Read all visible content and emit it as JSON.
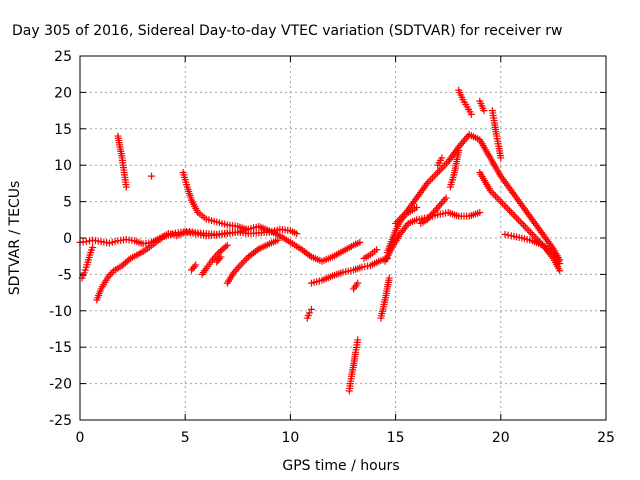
{
  "chart_data": {
    "type": "scatter",
    "title": "Day 305 of 2016, Sidereal Day-to-day VTEC variation (SDTVAR) for receiver rw",
    "xlabel": "GPS time / hours",
    "ylabel": "SDTVAR / TECUs",
    "xlim": [
      0,
      25
    ],
    "ylim": [
      -25,
      25
    ],
    "xticks": [
      "0",
      "5",
      "10",
      "15",
      "20",
      "25"
    ],
    "yticks": [
      "25",
      "20",
      "15",
      "10",
      "5",
      "0",
      "-5",
      "-10",
      "-15",
      "-20",
      "-25"
    ],
    "grid": true,
    "marker": "+",
    "colors": {
      "series": "#ff0000",
      "grid": "#a0a0a0",
      "axis": "#000000"
    },
    "series": [
      {
        "x": [
          0.0,
          0.3,
          0.6,
          1.0,
          1.4,
          1.8,
          2.2,
          2.6,
          3.0,
          3.4,
          3.8,
          4.2,
          4.6,
          5.0,
          5.5,
          6.0,
          6.5,
          7.0,
          7.5,
          8.0,
          8.5,
          9.0,
          9.5,
          10.0,
          10.5,
          11.0,
          11.5,
          12.0,
          12.5,
          13.0,
          13.3
        ],
        "y": [
          -0.6,
          -0.5,
          -0.3,
          -0.5,
          -0.7,
          -0.4,
          -0.2,
          -0.4,
          -0.8,
          -0.6,
          0.0,
          0.6,
          0.3,
          0.8,
          0.6,
          0.3,
          0.4,
          0.6,
          0.8,
          1.2,
          1.6,
          1.0,
          0.3,
          -0.6,
          -1.5,
          -2.6,
          -3.2,
          -2.6,
          -1.8,
          -1.0,
          -0.6
        ]
      },
      {
        "x": [
          0.1,
          0.2,
          0.3,
          0.4,
          0.5,
          0.6
        ],
        "y": [
          -5.5,
          -4.8,
          -4.0,
          -3.0,
          -2.0,
          -1.3
        ]
      },
      {
        "x": [
          0.8,
          1.0,
          1.3,
          1.6,
          2.0,
          2.4,
          2.8,
          3.2,
          3.6,
          4.0,
          4.4,
          4.8,
          5.2,
          5.6,
          6.0,
          6.5,
          7.0,
          7.5,
          8.0,
          8.5,
          9.0,
          9.5,
          10.0,
          10.3
        ],
        "y": [
          -8.5,
          -7.0,
          -5.5,
          -4.5,
          -3.8,
          -2.8,
          -2.2,
          -1.5,
          -0.6,
          0.2,
          0.6,
          0.8,
          0.9,
          0.7,
          0.6,
          0.5,
          0.7,
          0.8,
          0.6,
          0.7,
          0.8,
          1.2,
          1.0,
          0.6
        ]
      },
      {
        "x": [
          1.8,
          1.9,
          2.0,
          2.1,
          2.2
        ],
        "y": [
          14.0,
          12.5,
          11.0,
          9.0,
          7.0
        ]
      },
      {
        "x": [
          3.4
        ],
        "y": [
          8.5
        ]
      },
      {
        "x": [
          4.9,
          5.1,
          5.3,
          5.6,
          6.0,
          6.5,
          7.0,
          7.5,
          7.9
        ],
        "y": [
          9.0,
          7.0,
          5.2,
          3.5,
          2.6,
          2.2,
          1.8,
          1.6,
          1.2
        ]
      },
      {
        "x": [
          5.3,
          5.5
        ],
        "y": [
          -4.4,
          -3.7
        ]
      },
      {
        "x": [
          5.8,
          6.0,
          6.3,
          6.6,
          7.0
        ],
        "y": [
          -5.0,
          -4.2,
          -3.0,
          -2.0,
          -1.0
        ]
      },
      {
        "x": [
          6.5,
          6.7
        ],
        "y": [
          -3.3,
          -2.6
        ]
      },
      {
        "x": [
          7.0,
          7.3,
          7.6,
          8.0,
          8.5,
          9.0,
          9.4
        ],
        "y": [
          -6.2,
          -4.8,
          -3.8,
          -2.6,
          -1.5,
          -0.8,
          -0.3
        ]
      },
      {
        "x": [
          10.8,
          10.9,
          11.0
        ],
        "y": [
          -11.0,
          -10.3,
          -9.8
        ]
      },
      {
        "x": [
          11.0,
          11.5,
          12.0,
          12.5,
          13.0,
          13.4,
          13.8,
          14.2,
          14.6
        ],
        "y": [
          -6.2,
          -5.8,
          -5.2,
          -4.7,
          -4.4,
          -4.0,
          -3.8,
          -3.2,
          -2.8
        ]
      },
      {
        "x": [
          12.8,
          12.9,
          13.0,
          13.1,
          13.2
        ],
        "y": [
          -21.0,
          -19.0,
          -17.5,
          -15.7,
          -14.0
        ]
      },
      {
        "x": [
          13.0,
          13.2
        ],
        "y": [
          -7.0,
          -6.2
        ]
      },
      {
        "x": [
          13.5,
          13.8,
          14.1
        ],
        "y": [
          -2.8,
          -2.3,
          -1.6
        ]
      },
      {
        "x": [
          14.3,
          14.5,
          14.7
        ],
        "y": [
          -11.0,
          -8.5,
          -5.5
        ]
      },
      {
        "x": [
          14.6,
          14.8,
          15.0,
          15.2,
          15.4,
          15.6,
          15.8,
          16.0
        ],
        "y": [
          -2.0,
          -0.5,
          1.0,
          2.2,
          3.0,
          3.5,
          3.8,
          4.2
        ]
      },
      {
        "x": [
          14.5,
          14.8,
          15.2,
          15.6,
          16.0,
          16.5,
          17.0,
          17.5,
          18.0,
          18.5,
          19.0
        ],
        "y": [
          -3.2,
          -1.5,
          0.5,
          2.0,
          2.5,
          2.8,
          3.2,
          3.5,
          3.0,
          3.0,
          3.5
        ]
      },
      {
        "x": [
          15.0,
          15.5,
          16.0,
          16.5,
          17.0,
          17.5,
          18.0,
          18.5,
          19.0,
          19.5,
          20.0,
          20.5,
          21.0,
          21.5,
          22.0,
          22.5,
          22.8
        ],
        "y": [
          2.0,
          3.5,
          5.5,
          7.5,
          9.0,
          10.5,
          12.5,
          14.2,
          13.5,
          11.0,
          8.5,
          6.5,
          4.5,
          2.5,
          0.5,
          -1.5,
          -3.0
        ]
      },
      {
        "x": [
          16.2,
          16.5,
          16.8,
          17.1,
          17.4
        ],
        "y": [
          2.0,
          2.5,
          3.5,
          4.5,
          5.5
        ]
      },
      {
        "x": [
          17.0,
          17.2
        ],
        "y": [
          10.0,
          11.0
        ]
      },
      {
        "x": [
          17.6,
          17.8,
          18.0
        ],
        "y": [
          7.0,
          9.0,
          12.0
        ]
      },
      {
        "x": [
          18.0,
          18.2,
          18.4,
          18.6
        ],
        "y": [
          20.3,
          19.0,
          18.0,
          17.0
        ]
      },
      {
        "x": [
          19.0,
          19.2
        ],
        "y": [
          18.8,
          17.5
        ]
      },
      {
        "x": [
          19.6,
          19.7,
          19.8,
          19.9,
          20.0
        ],
        "y": [
          17.5,
          15.8,
          14.0,
          12.6,
          11.0
        ]
      },
      {
        "x": [
          19.0,
          19.5,
          20.0,
          20.5,
          21.0,
          21.5,
          22.0,
          22.5,
          22.8
        ],
        "y": [
          9.0,
          6.5,
          5.0,
          3.5,
          2.0,
          0.5,
          -1.0,
          -2.8,
          -4.5
        ]
      },
      {
        "x": [
          20.2,
          20.5,
          21.0,
          21.5,
          22.0,
          22.5,
          22.8
        ],
        "y": [
          0.5,
          0.3,
          0.0,
          -0.4,
          -1.0,
          -2.0,
          -3.5
        ]
      }
    ]
  }
}
